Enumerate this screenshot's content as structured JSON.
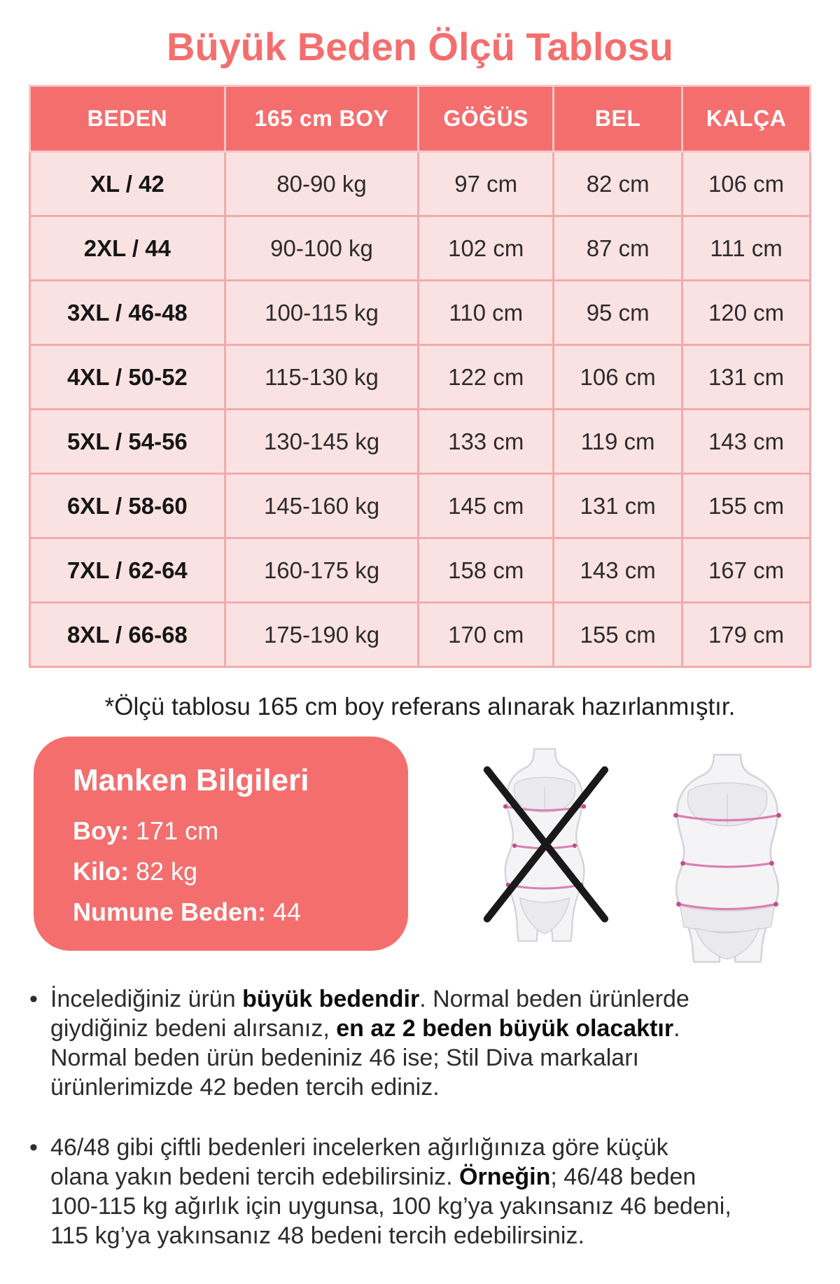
{
  "colors": {
    "coral": "#f46e6e",
    "cell": "#fbe2e2",
    "cellBorder": "#f2abab",
    "headerBorder": "#f8c6c6",
    "ink": "#2d2b2b",
    "silhouette": "#f4f4f6",
    "silhouetteLine": "#d3d3d8",
    "underwear": "#e9e9ee",
    "measure": "#da7fb0",
    "measureTip": "#bf4f8c"
  },
  "header": {
    "title": "Büyük Beden Ölçü Tablosu"
  },
  "size_table": {
    "columns": [
      "BEDEN",
      "165 cm BOY",
      "GÖĞÜS",
      "BEL",
      "KALÇA"
    ],
    "rows": [
      [
        "XL / 42",
        "80-90 kg",
        "97 cm",
        "82 cm",
        "106 cm"
      ],
      [
        "2XL / 44",
        "90-100 kg",
        "102 cm",
        "87 cm",
        "111 cm"
      ],
      [
        "3XL / 46-48",
        "100-115 kg",
        "110 cm",
        "95 cm",
        "120 cm"
      ],
      [
        "4XL / 50-52",
        "115-130 kg",
        "122 cm",
        "106 cm",
        "131 cm"
      ],
      [
        "5XL / 54-56",
        "130-145 kg",
        "133 cm",
        "119 cm",
        "143 cm"
      ],
      [
        "6XL / 58-60",
        "145-160 kg",
        "145 cm",
        "131 cm",
        "155 cm"
      ],
      [
        "7XL / 62-64",
        "160-175 kg",
        "158 cm",
        "143 cm",
        "167 cm"
      ],
      [
        "8XL / 66-68",
        "175-190 kg",
        "170 cm",
        "155 cm",
        "179 cm"
      ]
    ],
    "footnote": "*Ölçü tablosu 165 cm boy referans alınarak hazırlanmıştır."
  },
  "model_info": {
    "title": "Manken Bilgileri",
    "fields": [
      {
        "label": "Boy",
        "value": "171 cm"
      },
      {
        "label": "Kilo",
        "value": "82 kg"
      },
      {
        "label": "Numune Beden",
        "value": "44"
      }
    ]
  },
  "figures": {
    "left_icon": "slim-body-crossed-icon",
    "right_icon": "plus-size-body-icon"
  },
  "notes": [
    {
      "lines": [
        [
          {
            "t": "İncelediğiniz ürün "
          },
          {
            "t": "büyük bedendir",
            "b": 1
          },
          {
            "t": ". Normal beden ürünlerde"
          }
        ],
        [
          {
            "t": "giydiğiniz bedeni alırsanız, "
          },
          {
            "t": "en az 2 beden büyük olacaktır",
            "b": 1
          },
          {
            "t": "."
          }
        ],
        [
          {
            "t": "Normal beden ürün bedeniniz 46 ise; Stil Diva markaları"
          }
        ],
        [
          {
            "t": "ürünlerimizde 42 beden tercih ediniz."
          }
        ]
      ]
    },
    {
      "lines": [
        [
          {
            "t": "46/48 gibi çiftli bedenleri incelerken ağırlığınıza göre küçük"
          }
        ],
        [
          {
            "t": "olana yakın bedeni tercih edebilirsiniz. "
          },
          {
            "t": "Örneğin",
            "b": 1
          },
          {
            "t": "; 46/48 beden"
          }
        ],
        [
          {
            "t": "100-115 kg ağırlık için uygunsa, 100 kg’ya yakınsanız 46 bedeni,"
          }
        ],
        [
          {
            "t": "115 kg’ya yakınsanız 48 bedeni tercih edebilirsiniz."
          }
        ]
      ]
    }
  ]
}
